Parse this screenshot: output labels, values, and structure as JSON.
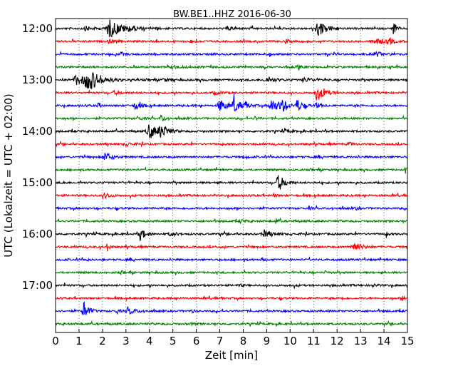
{
  "chart_data": {
    "type": "line",
    "title": "BW.BE1..HHZ 2016-06-30",
    "xlabel": "Zeit  [min]",
    "ylabel": "UTC (Lokalzeit = UTC + 02:00)",
    "xlim": [
      0,
      15
    ],
    "x_ticks": [
      0,
      1,
      2,
      3,
      4,
      5,
      6,
      7,
      8,
      9,
      10,
      11,
      12,
      13,
      14,
      15
    ],
    "y_ticks": [
      "12:00",
      "13:00",
      "14:00",
      "15:00",
      "16:00",
      "17:00"
    ],
    "trace_colors": [
      "#000000",
      "#ff0000",
      "#0000ff",
      "#008000"
    ],
    "grid": "vertical dotted",
    "traces": [
      {
        "start": "12:00",
        "events": [
          [
            1.3,
            0.25,
            0.4
          ],
          [
            2.3,
            0.5,
            1.8
          ],
          [
            3.2,
            0.2,
            0.4
          ],
          [
            4.3,
            0.1,
            0.3
          ],
          [
            7.3,
            0.2,
            0.4
          ],
          [
            11.2,
            0.35,
            1.5
          ],
          [
            14.4,
            0.1,
            1.5
          ]
        ]
      },
      {
        "start": "12:15",
        "events": [
          [
            2.3,
            0.2,
            0.4
          ],
          [
            5.8,
            0.2,
            0.3
          ],
          [
            9.8,
            0.1,
            0.6
          ],
          [
            13.7,
            0.5,
            0.5
          ],
          [
            14.2,
            0.1,
            1.0
          ]
        ]
      },
      {
        "start": "12:30",
        "events": [
          [
            2.8,
            0.1,
            0.4
          ],
          [
            9.1,
            0.1,
            0.4
          ],
          [
            13.7,
            0.3,
            0.4
          ]
        ]
      },
      {
        "start": "12:45",
        "events": [
          [
            5.0,
            0.3,
            0.3
          ],
          [
            10.3,
            0.2,
            0.3
          ]
        ]
      },
      {
        "start": "13:00",
        "events": [
          [
            0.9,
            0.4,
            1.0
          ],
          [
            1.4,
            0.5,
            2.0
          ],
          [
            4.6,
            0.2,
            0.3
          ],
          [
            9.0,
            0.4,
            0.4
          ],
          [
            10.6,
            0.3,
            0.4
          ]
        ]
      },
      {
        "start": "13:15",
        "events": [
          [
            2.5,
            0.3,
            0.3
          ],
          [
            6.8,
            0.3,
            0.3
          ],
          [
            11.1,
            0.15,
            1.8
          ],
          [
            11.4,
            0.3,
            0.6
          ]
        ]
      },
      {
        "start": "13:30",
        "events": [
          [
            1.8,
            0.1,
            0.5
          ],
          [
            3.4,
            0.2,
            0.9
          ],
          [
            7.0,
            0.25,
            1.3
          ],
          [
            7.6,
            0.2,
            1.8
          ],
          [
            8.1,
            0.2,
            0.6
          ],
          [
            9.2,
            0.3,
            1.3
          ],
          [
            9.6,
            0.2,
            1.4
          ],
          [
            10.3,
            0.2,
            1.3
          ],
          [
            11.1,
            0.2,
            0.5
          ]
        ]
      },
      {
        "start": "13:45",
        "events": [
          [
            3.5,
            0.2,
            0.3
          ],
          [
            4.5,
            0.15,
            0.7
          ],
          [
            8.5,
            0.1,
            0.4
          ]
        ]
      },
      {
        "start": "14:00",
        "events": [
          [
            4.0,
            0.35,
            1.5
          ],
          [
            4.5,
            0.3,
            1.0
          ],
          [
            9.8,
            0.2,
            0.3
          ]
        ]
      },
      {
        "start": "14:15",
        "events": [
          [
            3.0,
            0.3,
            0.3
          ],
          [
            12.5,
            0.2,
            0.3
          ]
        ]
      },
      {
        "start": "14:30",
        "events": [
          [
            2.1,
            0.25,
            0.9
          ],
          [
            8.1,
            0.1,
            0.3
          ]
        ]
      },
      {
        "start": "14:45",
        "events": [
          [
            2.8,
            0.1,
            0.3
          ],
          [
            14.9,
            0.05,
            0.6
          ]
        ]
      },
      {
        "start": "15:00",
        "events": [
          [
            0.35,
            0.05,
            0.5
          ],
          [
            9.5,
            0.25,
            1.6
          ]
        ]
      },
      {
        "start": "15:15",
        "events": [
          [
            2.1,
            0.25,
            0.5
          ],
          [
            9.3,
            0.1,
            0.3
          ]
        ]
      },
      {
        "start": "15:30",
        "events": [
          [
            10.8,
            0.1,
            0.3
          ],
          [
            12.8,
            0.1,
            0.3
          ]
        ]
      },
      {
        "start": "15:45",
        "events": [
          [
            7.9,
            0.15,
            0.4
          ],
          [
            9.4,
            0.1,
            0.6
          ]
        ]
      },
      {
        "start": "16:00",
        "events": [
          [
            3.6,
            0.2,
            1.2
          ],
          [
            4.9,
            0.2,
            0.4
          ],
          [
            8.9,
            0.3,
            0.7
          ],
          [
            14.1,
            0.05,
            0.6
          ]
        ]
      },
      {
        "start": "16:15",
        "events": [
          [
            2.2,
            0.1,
            0.8
          ],
          [
            12.7,
            0.3,
            1.0
          ]
        ]
      },
      {
        "start": "16:30",
        "events": [
          [
            1.3,
            0.1,
            0.3
          ],
          [
            8.8,
            0.05,
            0.6
          ]
        ]
      },
      {
        "start": "16:45",
        "events": [
          [
            2.8,
            0.1,
            0.3
          ],
          [
            11.5,
            0.1,
            0.3
          ]
        ]
      },
      {
        "start": "17:00",
        "events": [
          [
            7.8,
            0.1,
            0.3
          ],
          [
            13.5,
            0.1,
            0.3
          ]
        ]
      },
      {
        "start": "17:15",
        "events": [
          [
            12.2,
            0.05,
            0.5
          ],
          [
            14.8,
            0.15,
            0.5
          ]
        ]
      },
      {
        "start": "17:30",
        "events": [
          [
            1.2,
            0.2,
            1.8
          ],
          [
            2.6,
            0.1,
            0.6
          ],
          [
            3.1,
            0.3,
            0.6
          ],
          [
            5.8,
            0.1,
            0.3
          ]
        ]
      },
      {
        "start": "17:45",
        "events": [
          [
            5.8,
            0.1,
            0.3
          ]
        ]
      }
    ]
  }
}
